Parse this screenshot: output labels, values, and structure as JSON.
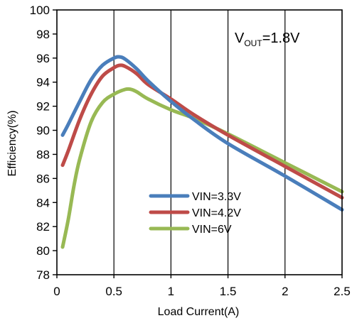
{
  "chart_data": {
    "type": "line",
    "title": "",
    "xlabel": "Load Current(A)",
    "ylabel": "Efficiency(%)",
    "xlim": [
      0,
      2.5
    ],
    "ylim": [
      78,
      100
    ],
    "xticks": [
      0,
      0.5,
      1,
      1.5,
      2,
      2.5
    ],
    "xtick_labels": [
      "0",
      "0.5",
      "1",
      "1.5",
      "2",
      "2.5"
    ],
    "yticks": [
      78,
      80,
      82,
      84,
      86,
      88,
      90,
      92,
      94,
      96,
      98,
      100
    ],
    "ytick_labels": [
      "78",
      "80",
      "82",
      "84",
      "86",
      "88",
      "90",
      "92",
      "94",
      "96",
      "98",
      "100"
    ],
    "grid": {
      "x": true,
      "y": false
    },
    "legend_position": "lower-middle",
    "annotation": {
      "main": "V",
      "sub": "OUT",
      "rest": "=1.8V"
    },
    "series": [
      {
        "name": "VIN=3.3V",
        "color": "#4a7ebb",
        "x": [
          0.05,
          0.1,
          0.2,
          0.3,
          0.4,
          0.5,
          0.55,
          0.6,
          0.7,
          0.8,
          1.0,
          1.2,
          1.5,
          2.0,
          2.5
        ],
        "y": [
          89.6,
          90.5,
          92.4,
          94.2,
          95.4,
          96.0,
          96.1,
          95.9,
          95.1,
          94.1,
          92.4,
          90.9,
          88.9,
          86.2,
          83.4
        ]
      },
      {
        "name": "VIN=4.2V",
        "color": "#be4b48",
        "x": [
          0.05,
          0.1,
          0.2,
          0.3,
          0.4,
          0.5,
          0.55,
          0.6,
          0.7,
          0.8,
          1.0,
          1.2,
          1.5,
          2.0,
          2.5
        ],
        "y": [
          87.1,
          88.3,
          90.9,
          93.0,
          94.5,
          95.2,
          95.4,
          95.3,
          94.7,
          93.8,
          92.6,
          91.3,
          89.6,
          87.0,
          84.4
        ]
      },
      {
        "name": "VIN=6V",
        "color": "#98b954",
        "x": [
          0.05,
          0.1,
          0.15,
          0.2,
          0.3,
          0.4,
          0.5,
          0.6,
          0.65,
          0.7,
          0.8,
          1.0,
          1.2,
          1.5,
          2.0,
          2.5
        ],
        "y": [
          80.3,
          82.6,
          85.4,
          87.6,
          90.7,
          92.3,
          93.0,
          93.4,
          93.4,
          93.2,
          92.6,
          91.7,
          91.0,
          89.7,
          87.3,
          84.9
        ]
      }
    ]
  }
}
